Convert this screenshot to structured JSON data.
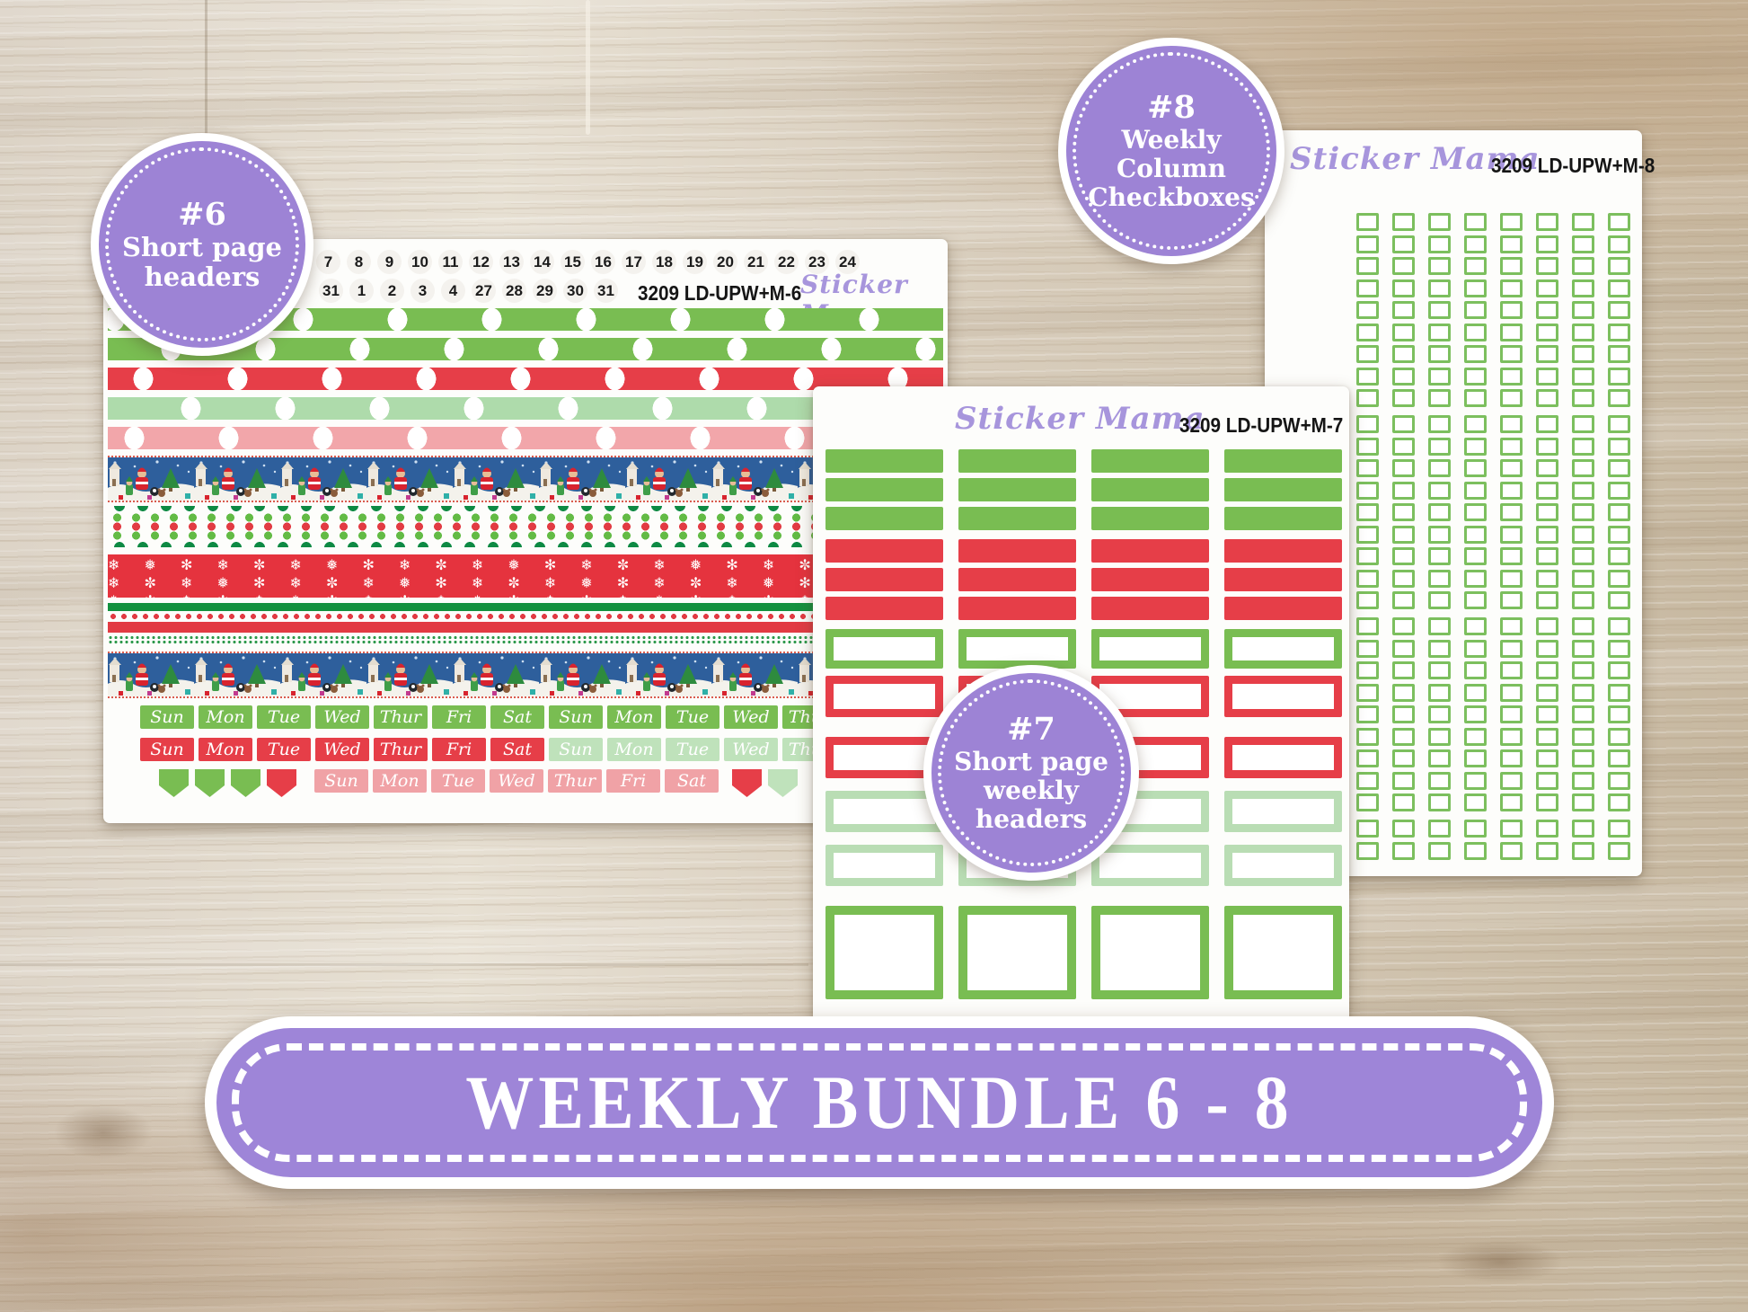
{
  "banner": {
    "text": "WEEKLY BUNDLE 6 - 8"
  },
  "badges": {
    "badge6": {
      "lines": [
        "#6",
        "Short page",
        "headers"
      ]
    },
    "badge7": {
      "lines": [
        "#7",
        "Short page",
        "weekly",
        "headers"
      ]
    },
    "badge8": {
      "lines": [
        "#8",
        "Weekly",
        "Column",
        "Checkboxes"
      ]
    }
  },
  "sheets": {
    "sheet6": {
      "brand": "Sticker Mama",
      "code": "3209 LD-UPW+M-6",
      "top_numbers": [
        "7",
        "8",
        "9",
        "10",
        "11",
        "12",
        "13",
        "14",
        "15",
        "16",
        "17",
        "18",
        "19",
        "20",
        "21",
        "22",
        "23",
        "24"
      ],
      "bottom_numbers": [
        "31",
        "1",
        "2",
        "3",
        "4",
        "27",
        "28",
        "29",
        "30",
        "31"
      ],
      "washi_strips": [
        "green-dots",
        "green-dots",
        "red-dots",
        "mint-dots",
        "pink-dots",
        "christmas-scene",
        "polka-dots",
        "red-snowflakes",
        "festive-stripes",
        "christmas-scene"
      ],
      "day_rows": [
        {
          "items": [
            {
              "label": "Sun",
              "color": "green"
            },
            {
              "label": "Mon",
              "color": "green"
            },
            {
              "label": "Tue",
              "color": "green"
            },
            {
              "label": "Wed",
              "color": "green"
            },
            {
              "label": "Thur",
              "color": "green"
            },
            {
              "label": "Fri",
              "color": "green"
            },
            {
              "label": "Sat",
              "color": "green"
            },
            {
              "label": "Sun",
              "color": "green"
            },
            {
              "label": "Mon",
              "color": "green"
            },
            {
              "label": "Tue",
              "color": "green"
            },
            {
              "label": "Wed",
              "color": "green"
            },
            {
              "label": "Thur",
              "color": "green"
            }
          ]
        },
        {
          "items": [
            {
              "label": "Sun",
              "color": "red"
            },
            {
              "label": "Mon",
              "color": "red"
            },
            {
              "label": "Tue",
              "color": "red"
            },
            {
              "label": "Wed",
              "color": "red"
            },
            {
              "label": "Thur",
              "color": "red"
            },
            {
              "label": "Fri",
              "color": "red"
            },
            {
              "label": "Sat",
              "color": "red"
            },
            {
              "label": "Sun",
              "color": "mint"
            },
            {
              "label": "Mon",
              "color": "mint"
            },
            {
              "label": "Tue",
              "color": "mint"
            },
            {
              "label": "Wed",
              "color": "mint"
            },
            {
              "label": "Thur",
              "color": "mint"
            }
          ]
        },
        {
          "items": [
            {
              "flag": true,
              "color": "green"
            },
            {
              "flag": true,
              "color": "green"
            },
            {
              "flag": true,
              "color": "green"
            },
            {
              "flag": true,
              "color": "red"
            },
            {
              "label": "Sun",
              "color": "pink"
            },
            {
              "label": "Mon",
              "color": "pink"
            },
            {
              "label": "Tue",
              "color": "pink"
            },
            {
              "label": "Wed",
              "color": "pink"
            },
            {
              "label": "Thur",
              "color": "pink"
            },
            {
              "label": "Fri",
              "color": "pink"
            },
            {
              "label": "Sat",
              "color": "pink"
            },
            {
              "flag": true,
              "color": "red"
            },
            {
              "flag": true,
              "color": "mint"
            }
          ]
        }
      ]
    },
    "sheet7": {
      "brand": "Sticker Mama",
      "code": "3209 LD-UPW+M-7",
      "columns": 4,
      "rows": [
        {
          "style": "solid",
          "color": "green"
        },
        {
          "style": "solid",
          "color": "green"
        },
        {
          "style": "solid",
          "color": "green"
        },
        {
          "style": "solid",
          "color": "red"
        },
        {
          "style": "solid",
          "color": "red"
        },
        {
          "style": "solid",
          "color": "red"
        },
        {
          "style": "outline",
          "color": "green"
        },
        {
          "style": "outline",
          "color": "red"
        },
        {
          "style": "outline",
          "color": "red"
        },
        {
          "style": "outline",
          "color": "mint"
        },
        {
          "style": "outline",
          "color": "mint"
        },
        {
          "style": "outline-large",
          "color": "green"
        }
      ]
    },
    "sheet8": {
      "brand": "Sticker Mama",
      "code": "3209 LD-UPW+M-8",
      "checkbox_columns": 8,
      "checkbox_groups_rows": [
        9,
        9,
        9,
        2
      ],
      "checkbox_color": "#7cbf5e"
    }
  },
  "colors": {
    "badge_purple": "#9d83d5",
    "banner_purple": "#9e85d8",
    "brand_purple": "#a795dc",
    "solid_green": "#79bd52",
    "solid_red": "#e63e48",
    "mint": "#bfe2bb",
    "pink": "#f0a2a6",
    "dark_green": "#11913f",
    "snowflake_red": "#e5333e",
    "christmas_blue": "#2e5f9c"
  }
}
